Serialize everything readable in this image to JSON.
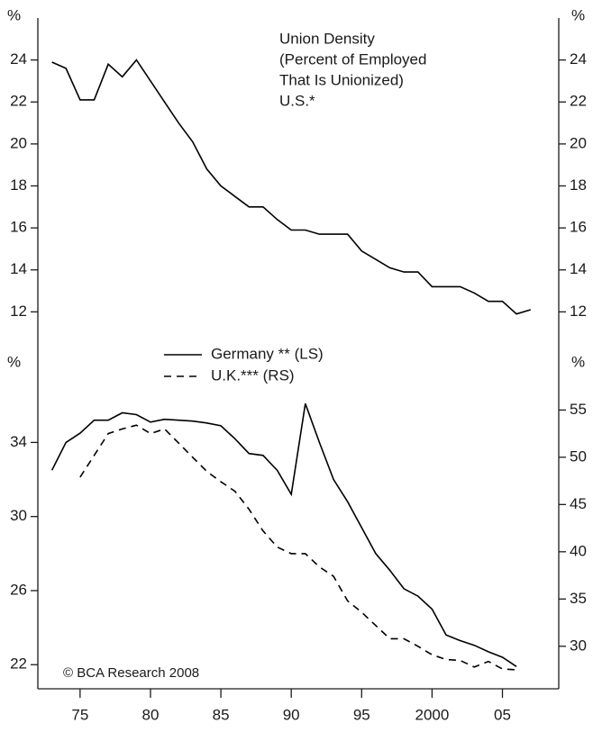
{
  "chart_data": [
    {
      "type": "line",
      "title": [
        "Union Density",
        "(Percent of Employed",
        "That Is Unionized)",
        "U.S.*"
      ],
      "y_unit": "%",
      "y2_unit": "%",
      "xlim": [
        1972,
        2009
      ],
      "ylim": [
        10,
        26
      ],
      "yticks": [
        12,
        14,
        16,
        18,
        20,
        22,
        24
      ],
      "y2lim": [
        10,
        26
      ],
      "y2ticks": [
        12,
        14,
        16,
        18,
        20,
        22,
        24
      ],
      "x": [
        1973,
        1974,
        1975,
        1976,
        1977,
        1978,
        1979,
        1980,
        1981,
        1982,
        1983,
        1984,
        1985,
        1986,
        1987,
        1988,
        1989,
        1990,
        1991,
        1992,
        1993,
        1994,
        1995,
        1996,
        1997,
        1998,
        1999,
        2000,
        2001,
        2002,
        2003,
        2004,
        2005,
        2006,
        2007
      ],
      "series": [
        {
          "color": "#000000",
          "values": [
            23.9,
            23.6,
            22.1,
            22.1,
            23.8,
            23.2,
            24.0,
            23.0,
            22.0,
            21.0,
            20.1,
            18.8,
            18.0,
            17.5,
            17.0,
            17.0,
            16.4,
            15.9,
            15.9,
            15.7,
            15.7,
            15.7,
            14.9,
            14.5,
            14.1,
            13.9,
            13.9,
            13.2,
            13.2,
            13.2,
            12.9,
            12.5,
            12.5,
            11.9,
            12.1
          ]
        }
      ]
    },
    {
      "type": "line",
      "y_unit": "%",
      "y2_unit": "%",
      "xlim": [
        1972,
        2009
      ],
      "xticks": [
        {
          "value": 1975,
          "label": "75"
        },
        {
          "value": 1980,
          "label": "80"
        },
        {
          "value": 1985,
          "label": "85"
        },
        {
          "value": 1990,
          "label": "90"
        },
        {
          "value": 1995,
          "label": "95"
        },
        2000,
        {
          "value": 2005,
          "label": "05"
        }
      ],
      "ylim": [
        20.7,
        38.2
      ],
      "yticks": [
        22,
        26,
        30,
        34
      ],
      "y2lim": [
        25.5,
        59.8
      ],
      "y2ticks": [
        30,
        35,
        40,
        45,
        50,
        55
      ],
      "legend": "top",
      "credit": "© BCA Research 2008",
      "series": [
        {
          "name": "Germany ** (LS)",
          "color": "#000000",
          "dash": false,
          "x": [
            1973,
            1974,
            1975,
            1976,
            1977,
            1978,
            1979,
            1980,
            1981,
            1982,
            1983,
            1984,
            1985,
            1986,
            1987,
            1988,
            1989,
            1990,
            1991,
            1992,
            1993,
            1994,
            1995,
            1996,
            1997,
            1998,
            1999,
            2000,
            2001,
            2002,
            2003,
            2004,
            2005,
            2006
          ],
          "values": [
            32.5,
            34.0,
            34.5,
            35.2,
            35.2,
            35.6,
            35.5,
            35.1,
            35.25,
            35.2,
            35.15,
            35.05,
            34.9,
            34.2,
            33.4,
            33.3,
            32.5,
            31.2,
            36.1,
            34.0,
            32.0,
            30.8,
            29.4,
            28.0,
            27.1,
            26.1,
            25.7,
            25.0,
            23.6,
            23.3,
            23.05,
            22.7,
            22.4,
            21.9
          ]
        },
        {
          "name": "U.K.*** (RS)",
          "color": "#000000",
          "dash": true,
          "axis": "y2",
          "x": [
            1975,
            1976,
            1977,
            1978,
            1979,
            1980,
            1981,
            1982,
            1983,
            1984,
            1985,
            1986,
            1987,
            1988,
            1989,
            1990,
            1991,
            1992,
            1993,
            1994,
            1995,
            1996,
            1997,
            1998,
            1999,
            2000,
            2001,
            2002,
            2003,
            2004,
            2005,
            2006
          ],
          "values": [
            47.9,
            50.2,
            52.5,
            53.0,
            53.4,
            52.5,
            53.0,
            51.5,
            50.0,
            48.5,
            47.4,
            46.4,
            44.5,
            42.2,
            40.5,
            39.8,
            39.8,
            38.4,
            37.4,
            34.8,
            33.6,
            32.2,
            30.8,
            30.8,
            30.0,
            29.1,
            28.6,
            28.5,
            27.8,
            28.4,
            27.6,
            27.5
          ]
        }
      ]
    }
  ]
}
